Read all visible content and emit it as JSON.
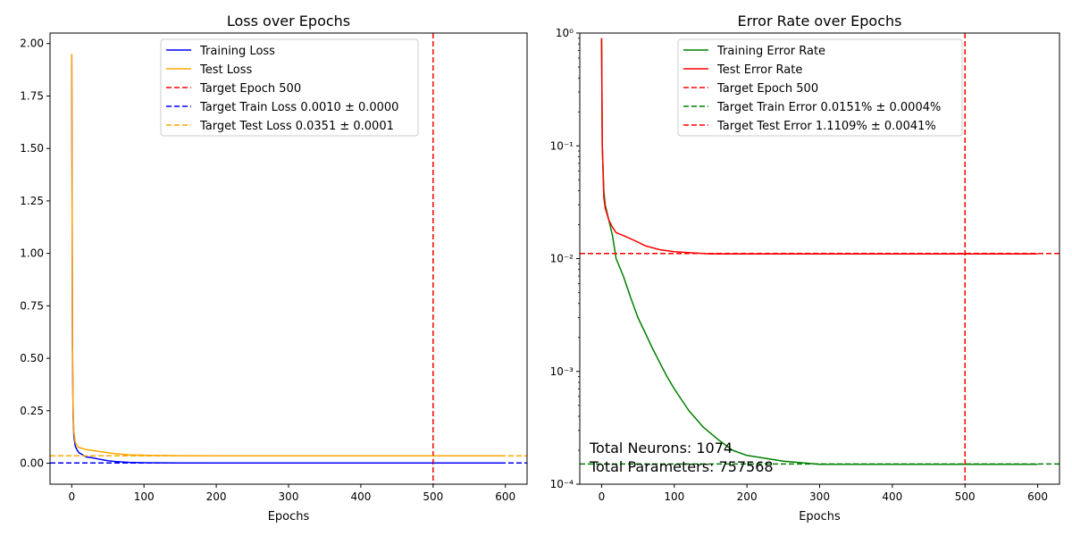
{
  "chart_data": [
    {
      "type": "line",
      "title": "Loss over Epochs",
      "xlabel": "Epochs",
      "ylabel": "",
      "xlim": [
        -30,
        630
      ],
      "ylim": [
        -0.1,
        2.05
      ],
      "yscale": "linear",
      "xticks": [
        "0",
        "100",
        "200",
        "300",
        "400",
        "500",
        "600"
      ],
      "yticks": [
        "0.00",
        "0.25",
        "0.50",
        "0.75",
        "1.00",
        "1.25",
        "1.50",
        "1.75",
        "2.00"
      ],
      "legend_position": "upper center",
      "series": [
        {
          "name": "Training Loss",
          "color": "#0000ff",
          "style": "solid",
          "x": [
            0,
            1,
            2,
            3,
            5,
            8,
            10,
            15,
            20,
            30,
            40,
            50,
            60,
            80,
            100,
            150,
            200,
            300,
            400,
            500,
            600
          ],
          "y": [
            1.95,
            0.55,
            0.22,
            0.13,
            0.08,
            0.06,
            0.05,
            0.04,
            0.03,
            0.025,
            0.018,
            0.012,
            0.008,
            0.004,
            0.002,
            0.0015,
            0.0012,
            0.0011,
            0.001,
            0.001,
            0.001
          ]
        },
        {
          "name": "Test Loss",
          "color": "#ffa500",
          "style": "solid",
          "x": [
            0,
            1,
            2,
            3,
            5,
            8,
            10,
            15,
            20,
            30,
            40,
            50,
            60,
            80,
            100,
            150,
            200,
            300,
            400,
            500,
            600
          ],
          "y": [
            1.95,
            0.6,
            0.25,
            0.15,
            0.1,
            0.08,
            0.075,
            0.07,
            0.065,
            0.06,
            0.055,
            0.05,
            0.045,
            0.04,
            0.038,
            0.036,
            0.035,
            0.035,
            0.035,
            0.035,
            0.035
          ]
        }
      ],
      "reference_lines": [
        {
          "name": "Target Epoch 500",
          "orientation": "vertical",
          "value": 500,
          "color": "#ff0000",
          "style": "dashed"
        },
        {
          "name": "Target Train Loss 0.0010 ± 0.0000",
          "orientation": "horizontal",
          "value": 0.001,
          "color": "#0000ff",
          "style": "dashed"
        },
        {
          "name": "Target Test Loss 0.0351 ± 0.0001",
          "orientation": "horizontal",
          "value": 0.0351,
          "color": "#ffa500",
          "style": "dashed"
        }
      ]
    },
    {
      "type": "line",
      "title": "Error Rate over Epochs",
      "xlabel": "Epochs",
      "ylabel": "",
      "xlim": [
        -30,
        630
      ],
      "ylim": [
        0.0001,
        1
      ],
      "yscale": "log",
      "xticks": [
        "0",
        "100",
        "200",
        "300",
        "400",
        "500",
        "600"
      ],
      "yticks": [
        "10⁻⁴",
        "10⁻³",
        "10⁻²",
        "10⁻¹",
        "10⁰"
      ],
      "legend_position": "upper center",
      "series": [
        {
          "name": "Training Error Rate",
          "color": "#008000",
          "style": "solid",
          "x": [
            0,
            1,
            3,
            5,
            10,
            15,
            20,
            30,
            40,
            50,
            60,
            70,
            80,
            90,
            100,
            120,
            140,
            160,
            180,
            200,
            250,
            300,
            350,
            400,
            450,
            500,
            550,
            600
          ],
          "y": [
            0.9,
            0.1,
            0.04,
            0.03,
            0.022,
            0.016,
            0.01,
            0.007,
            0.0045,
            0.003,
            0.0022,
            0.0016,
            0.0012,
            0.0009,
            0.0007,
            0.00045,
            0.00032,
            0.00025,
            0.0002,
            0.00018,
            0.00016,
            0.00015,
            0.00015,
            0.00015,
            0.00015,
            0.00015,
            0.00015,
            0.00015
          ]
        },
        {
          "name": "Test Error Rate",
          "color": "#ff0000",
          "style": "solid",
          "x": [
            0,
            1,
            3,
            5,
            10,
            15,
            20,
            30,
            40,
            50,
            60,
            80,
            100,
            150,
            200,
            300,
            400,
            500,
            600
          ],
          "y": [
            0.9,
            0.1,
            0.035,
            0.028,
            0.022,
            0.019,
            0.017,
            0.016,
            0.015,
            0.014,
            0.013,
            0.012,
            0.0115,
            0.011,
            0.011,
            0.011,
            0.011,
            0.011,
            0.011
          ]
        }
      ],
      "reference_lines": [
        {
          "name": "Target Epoch 500",
          "orientation": "vertical",
          "value": 500,
          "color": "#ff0000",
          "style": "dashed"
        },
        {
          "name": "Target Train Error 0.0151% ± 0.0004%",
          "orientation": "horizontal",
          "value": 0.000151,
          "color": "#008000",
          "style": "dashed"
        },
        {
          "name": "Target Test Error 1.1109% ± 0.0041%",
          "orientation": "horizontal",
          "value": 0.011109,
          "color": "#ff0000",
          "style": "dashed"
        }
      ],
      "annotations": [
        "Total Neurons: 1074",
        "Total Parameters: 757568"
      ]
    }
  ]
}
